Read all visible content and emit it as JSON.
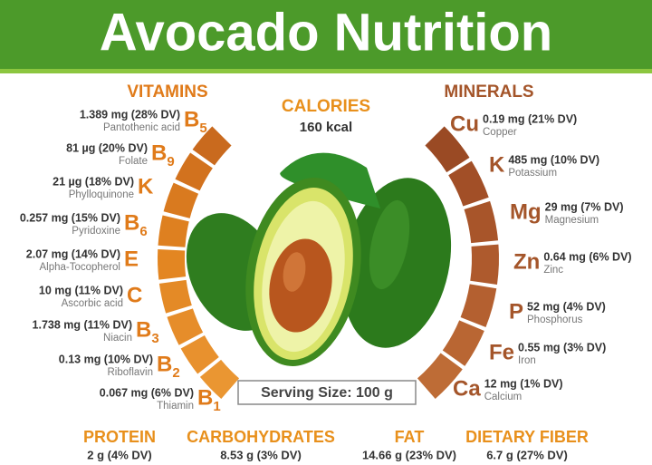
{
  "header": {
    "title": "Avocado Nutrition"
  },
  "calories": {
    "label": "CALORIES",
    "value": "160 kcal"
  },
  "vitamins": {
    "title": "VITAMINS",
    "items": [
      {
        "symbol": "B",
        "subscript": "5",
        "amount": "1.389 mg (28% DV)",
        "name": "Pantothenic acid"
      },
      {
        "symbol": "B",
        "subscript": "9",
        "amount": "81 µg (20% DV)",
        "name": "Folate"
      },
      {
        "symbol": "K",
        "amount": "21 µg (18% DV)",
        "name": "Phylloquinone"
      },
      {
        "symbol": "B",
        "subscript": "6",
        "amount": "0.257 mg (15% DV)",
        "name": "Pyridoxine"
      },
      {
        "symbol": "E",
        "amount": "2.07 mg (14% DV)",
        "name": "Alpha-Tocopherol"
      },
      {
        "symbol": "C",
        "amount": "10 mg (11% DV)",
        "name": "Ascorbic acid"
      },
      {
        "symbol": "B",
        "subscript": "3",
        "amount": "1.738 mg (11% DV)",
        "name": "Niacin"
      },
      {
        "symbol": "B",
        "subscript": "2",
        "amount": "0.13 mg (10% DV)",
        "name": "Riboflavin"
      },
      {
        "symbol": "B",
        "subscript": "1",
        "amount": "0.067 mg (6% DV)",
        "name": "Thiamin"
      }
    ]
  },
  "minerals": {
    "title": "MINERALS",
    "items": [
      {
        "symbol": "Cu",
        "amount": "0.19 mg (21% DV)",
        "name": "Copper"
      },
      {
        "symbol": "K",
        "amount": "485 mg (10% DV)",
        "name": "Potassium"
      },
      {
        "symbol": "Mg",
        "amount": "29 mg (7% DV)",
        "name": "Magnesium"
      },
      {
        "symbol": "Zn",
        "amount": "0.64 mg (6% DV)",
        "name": "Zinc"
      },
      {
        "symbol": "P",
        "amount": "52 mg (4% DV)",
        "name": "Phosphorus"
      },
      {
        "symbol": "Fe",
        "amount": "0.55 mg (3% DV)",
        "name": "Iron"
      },
      {
        "symbol": "Ca",
        "amount": "12 mg (1% DV)",
        "name": "Calcium"
      }
    ]
  },
  "serving_size": "Serving Size: 100 g",
  "macros": [
    {
      "label": "PROTEIN",
      "value": "2 g (4% DV)"
    },
    {
      "label": "CARBOHYDRATES",
      "value": "8.53 g (3% DV)"
    },
    {
      "label": "FAT",
      "value": "14.66 g (23% DV)"
    },
    {
      "label": "DIETARY FIBER",
      "value": "6.7 g (27% DV)"
    }
  ]
}
